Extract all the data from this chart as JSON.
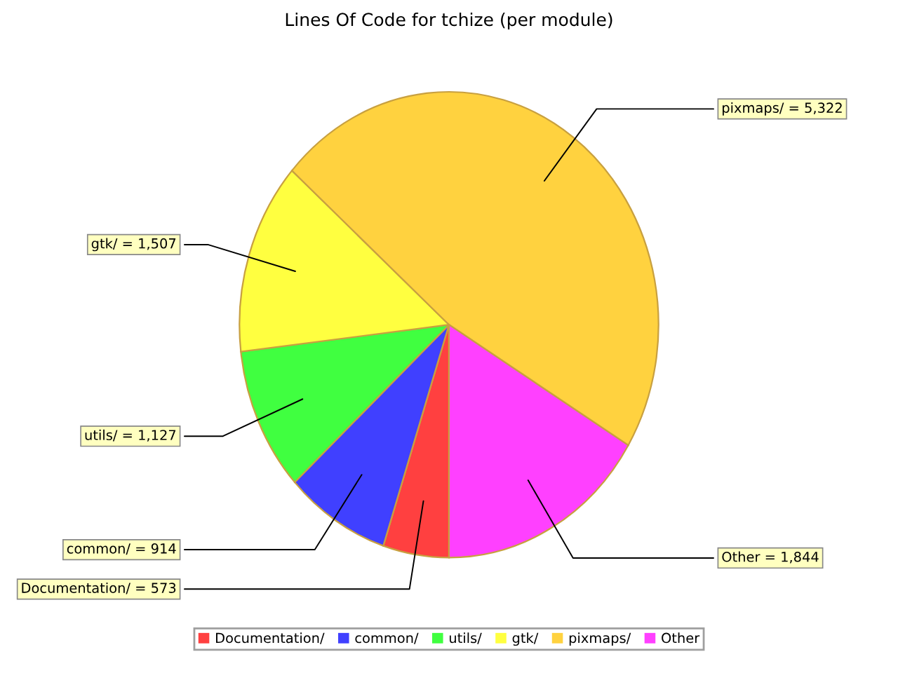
{
  "chart_data": {
    "type": "pie",
    "title": "Lines Of Code for tchize (per module)",
    "categories": [
      "Documentation/",
      "common/",
      "utils/",
      "gtk/",
      "pixmaps/",
      "Other"
    ],
    "values": [
      573,
      914,
      1127,
      1507,
      5322,
      1844
    ],
    "colors": [
      "#ff4040",
      "#4040ff",
      "#40ff40",
      "#ffff40",
      "#ffd23f",
      "#ff40ff"
    ],
    "value_labels": [
      "Documentation/ = 573",
      "common/ = 914",
      "utils/ = 1,127",
      "gtk/ = 1,507",
      "pixmaps/ = 5,322",
      "Other = 1,844"
    ],
    "legend": "bottom"
  }
}
